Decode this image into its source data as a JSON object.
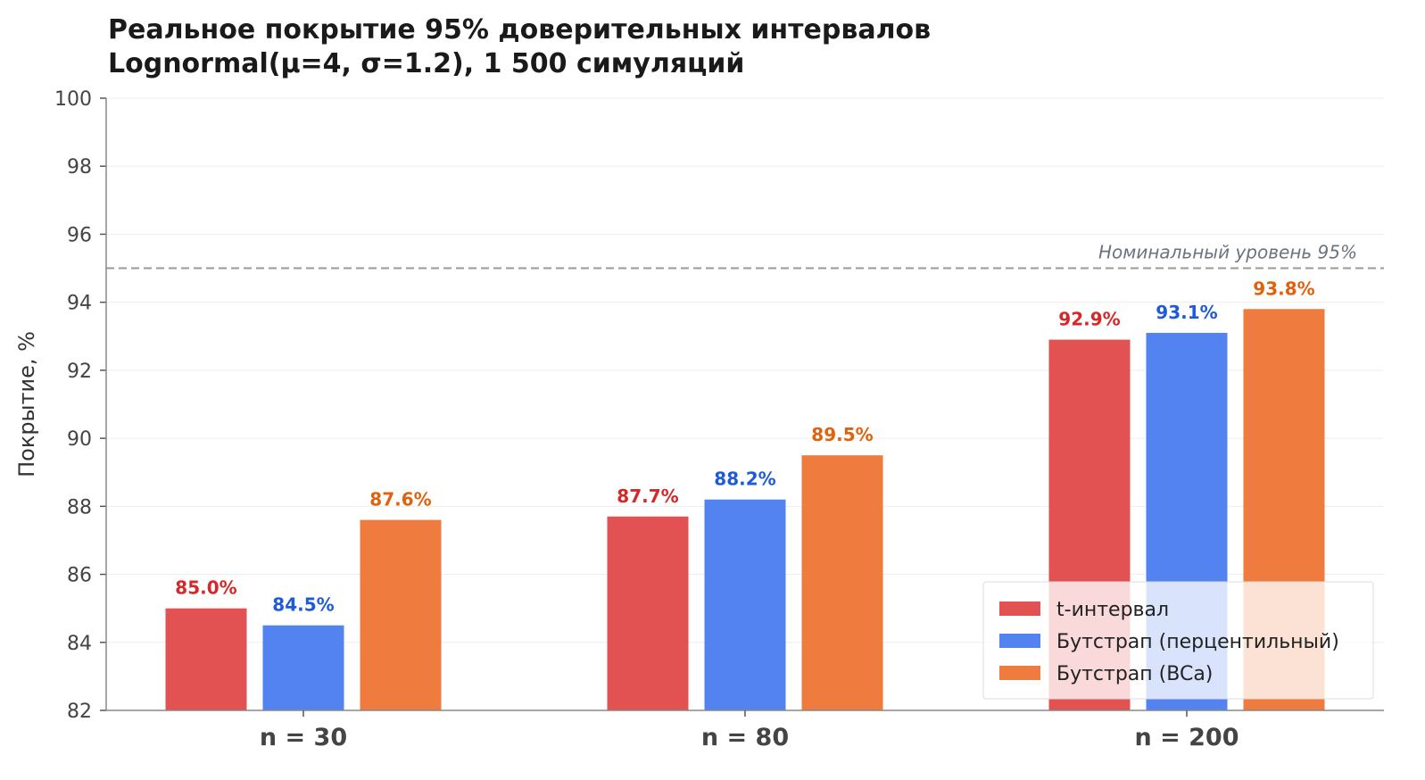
{
  "chart_data": {
    "type": "bar",
    "title": "Реальное покрытие 95% доверительных интервалов",
    "subtitle": "Lognormal(μ=4, σ=1.2), 1 500 симуляций",
    "xlabel": "",
    "ylabel": "Покрытие, %",
    "ylim": [
      82,
      100
    ],
    "yticks": [
      "82",
      "84",
      "86",
      "88",
      "90",
      "92",
      "94",
      "96",
      "98",
      "100"
    ],
    "categories": [
      "n = 30",
      "n = 80",
      "n = 200"
    ],
    "series": [
      {
        "name": "t-интервал",
        "color": "#e35252",
        "label_color": "#d62828",
        "values": [
          85.0,
          87.7,
          92.9
        ],
        "labels": [
          "85.0%",
          "87.7%",
          "92.9%"
        ]
      },
      {
        "name": "Бутстрап (перцентильный)",
        "color": "#5283f0",
        "label_color": "#1f5bd9",
        "values": [
          84.5,
          88.2,
          93.1
        ],
        "labels": [
          "84.5%",
          "88.2%",
          "93.1%"
        ]
      },
      {
        "name": "Бутстрап (BCa)",
        "color": "#ef7b3e",
        "label_color": "#e0620f",
        "values": [
          87.6,
          89.5,
          93.8
        ],
        "labels": [
          "87.6%",
          "89.5%",
          "93.8%"
        ]
      }
    ],
    "reference_line": {
      "value": 95,
      "label": "Номинальный уровень 95%"
    },
    "grid": true,
    "legend": "bottom-right"
  }
}
